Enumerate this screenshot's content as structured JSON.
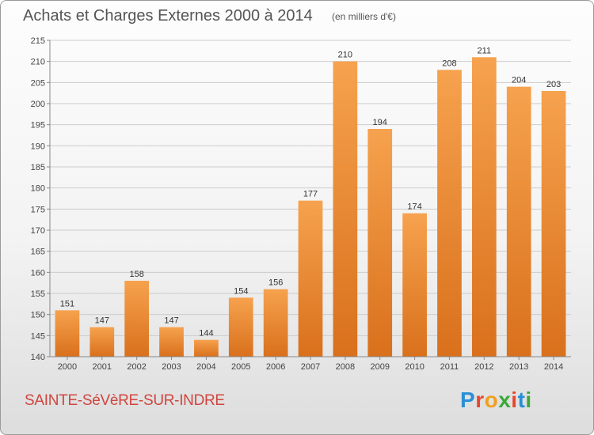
{
  "title": "Achats et Charges Externes 2000 à 2014",
  "unit": "(en milliers d'€)",
  "commune": "SAINTE-SéVèRE-SUR-INDRE",
  "logo": {
    "letters": [
      "P",
      "r",
      "o",
      "x",
      "i",
      "t",
      "i"
    ],
    "colors": [
      "#2a8fd6",
      "#e8462c",
      "#f0a020",
      "#3da83a",
      "#e8462c",
      "#2a8fd6",
      "#3da83a"
    ]
  },
  "colors": {
    "bar_top": "#f6a24e",
    "bar_bottom": "#d9701c",
    "grid": "#cccccc",
    "axis": "#888888"
  },
  "chart_data": {
    "type": "bar",
    "categories": [
      "2000",
      "2001",
      "2002",
      "2003",
      "2004",
      "2005",
      "2006",
      "2007",
      "2008",
      "2009",
      "2010",
      "2011",
      "2012",
      "2013",
      "2014"
    ],
    "values": [
      151,
      147,
      158,
      147,
      144,
      154,
      156,
      177,
      210,
      194,
      174,
      208,
      211,
      204,
      203
    ],
    "yticks": [
      140,
      145,
      150,
      155,
      160,
      165,
      170,
      175,
      180,
      185,
      190,
      195,
      200,
      205,
      210,
      215
    ],
    "ylim": [
      140,
      215
    ],
    "grid": true
  }
}
